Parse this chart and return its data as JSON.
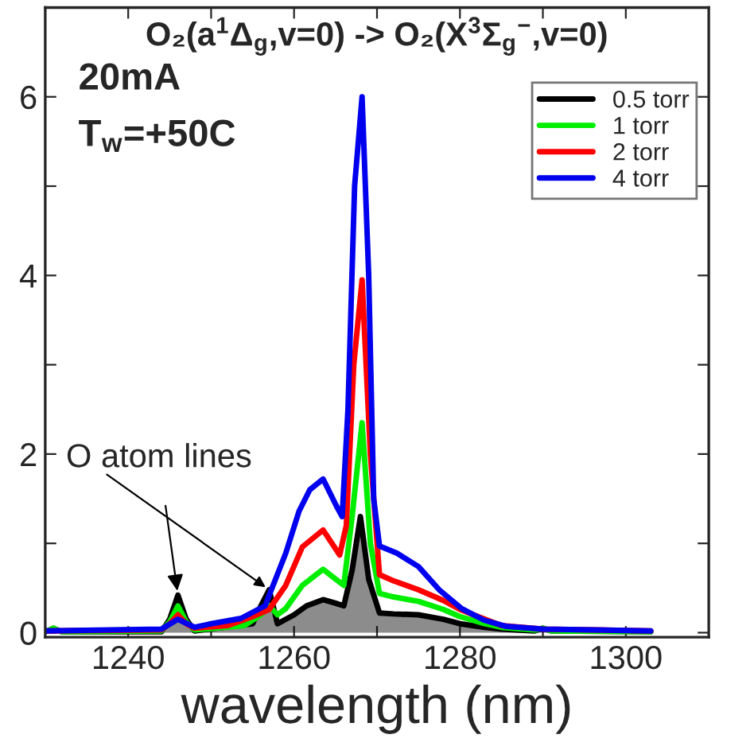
{
  "chart_data": {
    "type": "line",
    "title": "O₂(a$^{1}$Δ$_{g}$,v=0) -> O₂(X$^{3}$Σ$_{g}$$^{−}$,v=0)",
    "xlabel": "wavelength (nm)",
    "annotations": [
      "20mA",
      "T$_{w}$=+50C",
      {
        "text": "O atom lines",
        "x": 1246,
        "y": 0.42
      }
    ],
    "series": [
      {
        "name": "0.5 torr",
        "color": "#000000",
        "type": "area",
        "x": [
          1230,
          1231,
          1232,
          1244,
          1245,
          1246,
          1247,
          1248,
          1255,
          1256,
          1257,
          1258,
          1260,
          1261.5,
          1263.5,
          1265,
          1266,
          1267,
          1268,
          1269,
          1270.3,
          1272,
          1275,
          1278,
          1280,
          1283,
          1285,
          1289,
          1290,
          1291,
          1303
        ],
        "values": [
          0.01,
          0.05,
          0.01,
          0.01,
          0.15,
          0.42,
          0.15,
          0.02,
          0.1,
          0.3,
          0.48,
          0.1,
          0.2,
          0.3,
          0.37,
          0.33,
          0.3,
          0.7,
          1.3,
          0.6,
          0.22,
          0.21,
          0.2,
          0.15,
          0.1,
          0.06,
          0.04,
          0.02,
          0.05,
          0.02,
          0.01
        ]
      },
      {
        "name": "1 torr",
        "color": "#00ee00",
        "x": [
          1230,
          1231,
          1232,
          1244,
          1245,
          1246,
          1247,
          1248,
          1254,
          1256,
          1257,
          1258,
          1259,
          1261,
          1263.5,
          1265,
          1266,
          1267,
          1268.2,
          1269.2,
          1270.3,
          1272,
          1275,
          1278,
          1280,
          1283,
          1285,
          1289,
          1290,
          1291,
          1303
        ],
        "values": [
          0.01,
          0.05,
          0.01,
          0.02,
          0.12,
          0.3,
          0.12,
          0.03,
          0.08,
          0.2,
          0.3,
          0.2,
          0.27,
          0.53,
          0.71,
          0.6,
          0.53,
          1.3,
          2.35,
          1.0,
          0.44,
          0.4,
          0.35,
          0.26,
          0.18,
          0.1,
          0.06,
          0.03,
          0.05,
          0.02,
          0.01
        ]
      },
      {
        "name": "2 torr",
        "color": "#ff0000",
        "x": [
          1230,
          1244,
          1245,
          1246,
          1247,
          1248,
          1252,
          1255,
          1257,
          1259,
          1261,
          1263.5,
          1265.5,
          1266.3,
          1267.2,
          1268.2,
          1269.2,
          1270.3,
          1272,
          1275,
          1278,
          1280,
          1283,
          1285,
          1290,
          1303
        ],
        "values": [
          0.02,
          0.03,
          0.1,
          0.2,
          0.1,
          0.05,
          0.08,
          0.18,
          0.26,
          0.53,
          0.96,
          1.15,
          0.87,
          1.2,
          3.0,
          3.95,
          2.0,
          0.65,
          0.58,
          0.48,
          0.36,
          0.26,
          0.15,
          0.08,
          0.04,
          0.02
        ]
      },
      {
        "name": "4 torr",
        "color": "#0000ee",
        "x": [
          1230,
          1244,
          1246,
          1248,
          1250,
          1253.6,
          1256.5,
          1259,
          1260.6,
          1261.9,
          1263.5,
          1265.1,
          1265.8,
          1266.5,
          1267.3,
          1268.2,
          1269,
          1269.6,
          1270.3,
          1272.4,
          1275,
          1277.5,
          1280.2,
          1282.9,
          1285.6,
          1290,
          1303
        ],
        "values": [
          0.02,
          0.04,
          0.15,
          0.06,
          0.1,
          0.16,
          0.3,
          0.89,
          1.36,
          1.6,
          1.72,
          1.42,
          1.3,
          2.5,
          5.0,
          6.0,
          4.0,
          1.5,
          0.97,
          0.89,
          0.74,
          0.48,
          0.27,
          0.14,
          0.07,
          0.04,
          0.02
        ]
      }
    ],
    "xlim": [
      1230,
      1310
    ],
    "xticks": [
      1240,
      {
        "value": 1250,
        "label": null
      },
      1260,
      {
        "value": 1270,
        "label": null
      },
      1280,
      {
        "value": 1290,
        "label": null
      },
      1300
    ],
    "ylim": [
      -0.05,
      7
    ],
    "yticks": [
      0,
      {
        "value": 1,
        "label": null
      },
      2,
      {
        "value": 3,
        "label": null
      },
      4,
      {
        "value": 5,
        "label": null
      },
      6
    ],
    "legend": "top right",
    "grid": false
  }
}
